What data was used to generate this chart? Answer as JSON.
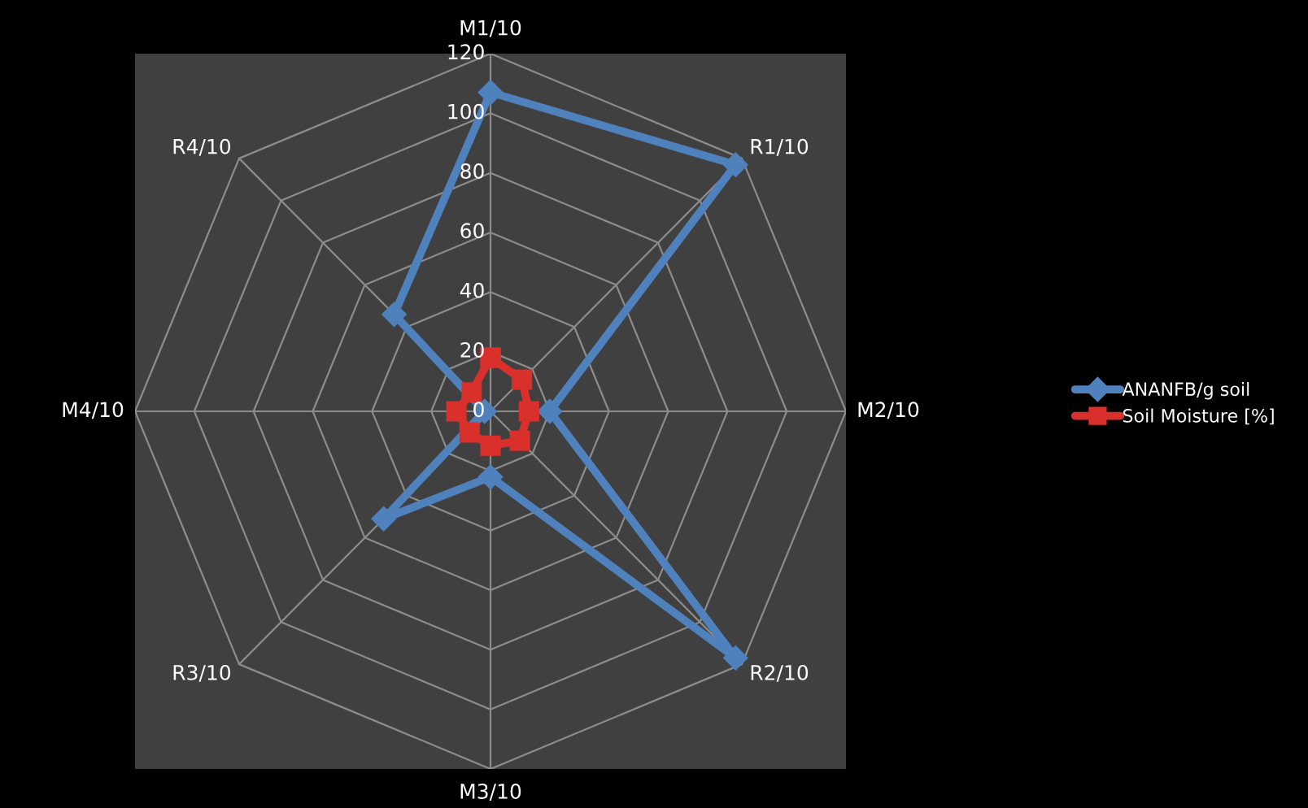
{
  "chart_data": {
    "type": "radar",
    "categories": [
      "M1/10",
      "R1/10",
      "M2/10",
      "R2/10",
      "M3/10",
      "R3/10",
      "M4/10",
      "R4/10"
    ],
    "series": [
      {
        "name": "ANANFB/g soil",
        "color": "#4f81bd",
        "marker": "diamond",
        "values": [
          107,
          117,
          20,
          117,
          22,
          51,
          2,
          46
        ]
      },
      {
        "name": "Soil Moisture [%]",
        "color": "#d9302c",
        "marker": "square",
        "values": [
          18,
          15,
          13,
          14,
          11.5,
          10,
          11.5,
          9
        ]
      }
    ],
    "ylim": [
      0,
      120
    ],
    "yticks": [
      0,
      20,
      40,
      60,
      80,
      100,
      120
    ],
    "grid": true,
    "legend": "right"
  }
}
